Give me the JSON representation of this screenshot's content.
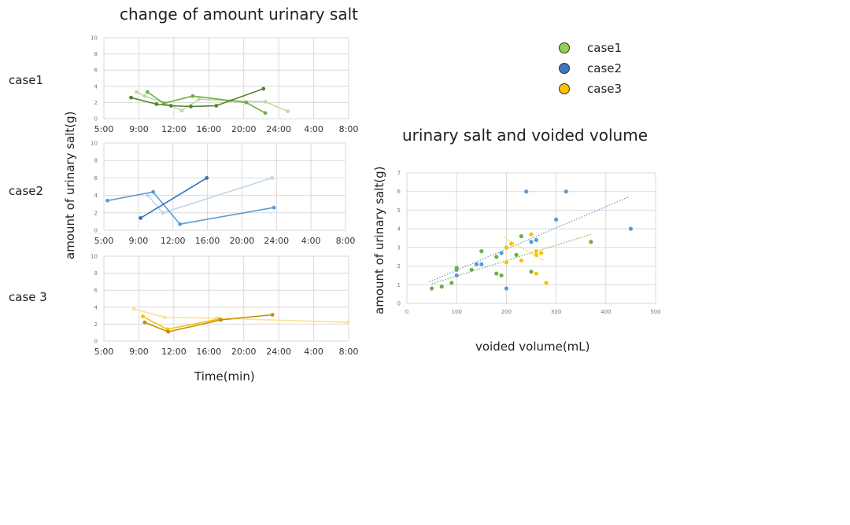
{
  "left_panel": {
    "title": "change of amount urinary salt",
    "ylabel": "amount of urinary salt(g)",
    "xlabel": "Time(min)"
  },
  "right_panel": {
    "title": "urinary salt and voided volume",
    "ylabel": "amount of urinary salt(g)",
    "xlabel": "voided volume(mL)"
  },
  "legend": [
    {
      "label": "case1",
      "color": "#92d050"
    },
    {
      "label": "case2",
      "color": "#4472c4"
    },
    {
      "label": "case3",
      "color": "#ffc000"
    }
  ],
  "chart_data": [
    {
      "type": "line",
      "case_label": "case1",
      "x_tick_labels": [
        "5:00",
        "9:00",
        "12:00",
        "16:00",
        "20:00",
        "24:00",
        "4:00",
        "8:00"
      ],
      "x_unit": "hours since 5:00",
      "y_ticks": [
        0,
        2,
        4,
        6,
        8,
        10
      ],
      "ylim": [
        0,
        10
      ],
      "xlim": [
        0,
        27
      ],
      "grid": true,
      "series": [
        {
          "color": "#bcdca6",
          "points": [
            [
              3.6,
              3.3
            ],
            [
              4.5,
              2.8
            ],
            [
              6.8,
              1.9
            ],
            [
              8.6,
              1.0
            ],
            [
              10.5,
              2.4
            ],
            [
              14.0,
              2.2
            ],
            [
              17.8,
              2.1
            ],
            [
              20.3,
              0.9
            ]
          ]
        },
        {
          "color": "#70ad47",
          "points": [
            [
              4.8,
              3.3
            ],
            [
              6.6,
              1.9
            ],
            [
              9.8,
              2.8
            ],
            [
              15.7,
              2.0
            ],
            [
              17.8,
              0.7
            ]
          ]
        },
        {
          "color": "#548235",
          "points": [
            [
              3.0,
              2.6
            ],
            [
              5.8,
              1.8
            ],
            [
              7.4,
              1.6
            ],
            [
              9.6,
              1.5
            ],
            [
              12.4,
              1.6
            ],
            [
              17.6,
              3.7
            ]
          ]
        }
      ]
    },
    {
      "type": "line",
      "case_label": "case2",
      "x_tick_labels": [
        "5:00",
        "9:00",
        "12:00",
        "16:00",
        "20:00",
        "24:00",
        "4:00",
        "8:00"
      ],
      "x_unit": "hours since 5:00",
      "y_ticks": [
        0,
        2,
        4,
        6,
        8,
        10
      ],
      "ylim": [
        0,
        10
      ],
      "xlim": [
        0,
        27
      ],
      "grid": true,
      "series": [
        {
          "color": "#bdd7ee",
          "points": [
            [
              4.9,
              4.0
            ],
            [
              6.6,
              2.0
            ],
            [
              18.8,
              6.0
            ]
          ]
        },
        {
          "color": "#5b9bd5",
          "points": [
            [
              0.4,
              3.4
            ],
            [
              5.5,
              4.4
            ],
            [
              8.5,
              0.7
            ],
            [
              19.0,
              2.6
            ]
          ]
        },
        {
          "color": "#2e75b6",
          "points": [
            [
              4.1,
              1.4
            ],
            [
              11.5,
              6.0
            ]
          ]
        }
      ]
    },
    {
      "type": "line",
      "case_label": "case 3",
      "x_tick_labels": [
        "5:00",
        "9:00",
        "12:00",
        "16:00",
        "20:00",
        "24:00",
        "4:00",
        "8:00"
      ],
      "x_unit": "hours since 5:00",
      "y_ticks": [
        0,
        2,
        4,
        6,
        8,
        10
      ],
      "ylim": [
        0,
        10
      ],
      "xlim": [
        0,
        27
      ],
      "grid": true,
      "series": [
        {
          "color": "#ffe08c",
          "points": [
            [
              3.3,
              3.8
            ],
            [
              6.7,
              2.8
            ],
            [
              12.4,
              2.7
            ],
            [
              26.9,
              2.2
            ]
          ]
        },
        {
          "color": "#ffc000",
          "points": [
            [
              4.3,
              2.9
            ],
            [
              7.0,
              1.4
            ],
            [
              12.7,
              2.6
            ]
          ]
        },
        {
          "color": "#bf9000",
          "points": [
            [
              4.5,
              2.2
            ],
            [
              7.1,
              1.1
            ],
            [
              12.9,
              2.5
            ],
            [
              18.6,
              3.1
            ]
          ]
        }
      ]
    },
    {
      "type": "scatter",
      "xlim": [
        0,
        500
      ],
      "ylim": [
        0,
        7
      ],
      "x_ticks": [
        0,
        100,
        200,
        300,
        400,
        500
      ],
      "y_ticks": [
        0,
        1,
        2,
        3,
        4,
        5,
        6,
        7
      ],
      "grid": true,
      "series": [
        {
          "name": "case1",
          "color": "#70ad47",
          "points": [
            [
              50,
              0.8
            ],
            [
              70,
              0.9
            ],
            [
              90,
              1.1
            ],
            [
              100,
              1.9
            ],
            [
              100,
              1.8
            ],
            [
              130,
              1.8
            ],
            [
              150,
              2.8
            ],
            [
              180,
              2.5
            ],
            [
              180,
              1.6
            ],
            [
              190,
              1.5
            ],
            [
              220,
              2.6
            ],
            [
              230,
              3.6
            ],
            [
              250,
              1.7
            ],
            [
              370,
              3.3
            ]
          ],
          "trend": [
            [
              50,
              1.05
            ],
            [
              370,
              3.7
            ]
          ]
        },
        {
          "name": "case2",
          "color": "#5b9bd5",
          "points": [
            [
              100,
              1.5
            ],
            [
              140,
              2.1
            ],
            [
              150,
              2.1
            ],
            [
              190,
              2.7
            ],
            [
              200,
              0.8
            ],
            [
              240,
              6.0
            ],
            [
              250,
              3.3
            ],
            [
              260,
              3.4
            ],
            [
              300,
              4.5
            ],
            [
              320,
              6.0
            ],
            [
              450,
              4.0
            ]
          ],
          "trend": [
            [
              45,
              1.15
            ],
            [
              445,
              5.7
            ]
          ]
        },
        {
          "name": "case3",
          "color": "#ffc000",
          "points": [
            [
              200,
              3.0
            ],
            [
              200,
              2.2
            ],
            [
              210,
              3.2
            ],
            [
              230,
              2.3
            ],
            [
              250,
              3.7
            ],
            [
              260,
              2.6
            ],
            [
              260,
              2.8
            ],
            [
              260,
              1.6
            ],
            [
              270,
              2.7
            ],
            [
              280,
              1.1
            ]
          ],
          "trend": [
            [
              195,
              3.55
            ],
            [
              275,
              2.3
            ]
          ]
        }
      ]
    }
  ]
}
